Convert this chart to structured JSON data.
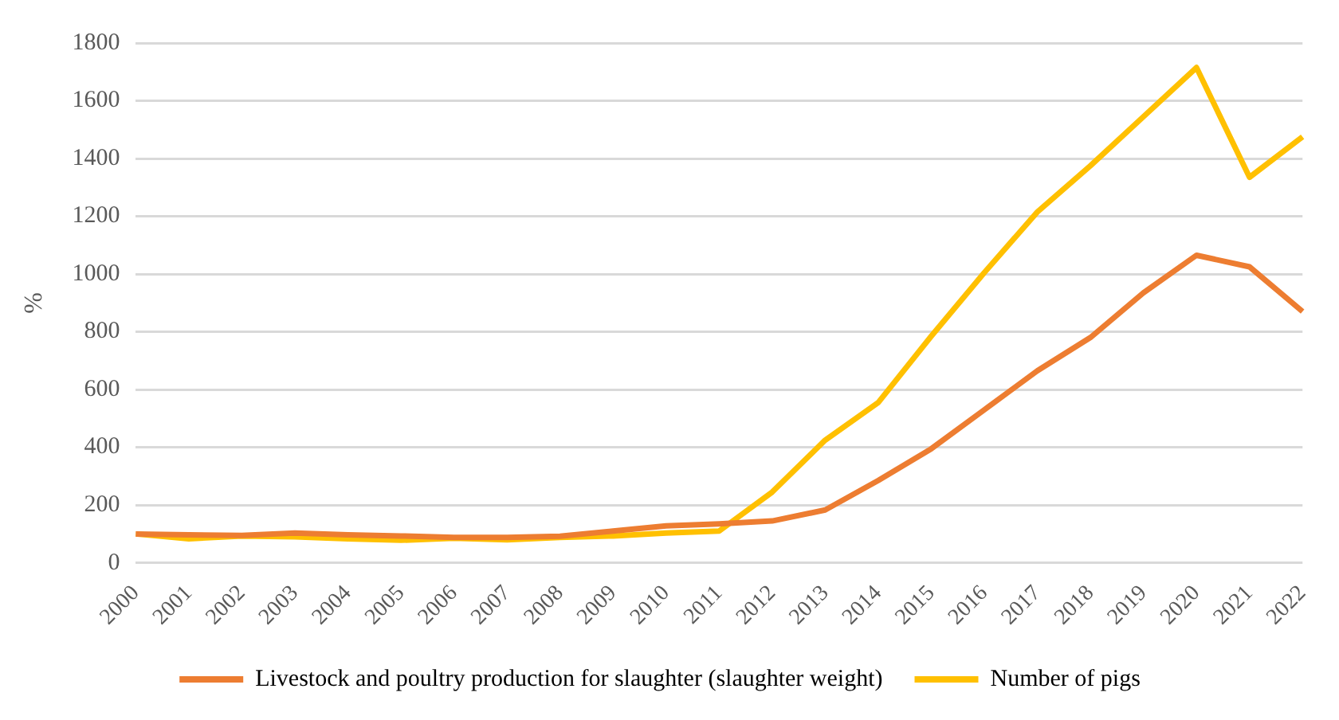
{
  "chart_data": {
    "type": "line",
    "ylabel": "%",
    "categories": [
      "2000",
      "2001",
      "2002",
      "2003",
      "2004",
      "2005",
      "2006",
      "2007",
      "2008",
      "2009",
      "2010",
      "2011",
      "2012",
      "2013",
      "2014",
      "2015",
      "2016",
      "2017",
      "2018",
      "2019",
      "2020",
      "2021",
      "2022"
    ],
    "series": [
      {
        "name": "Livestock and poultry production for slaughter (slaughter weight)",
        "color": "#ed7d31",
        "values": [
          100,
          97,
          95,
          103,
          97,
          93,
          88,
          88,
          92,
          110,
          128,
          135,
          145,
          183,
          285,
          395,
          530,
          665,
          780,
          935,
          1065,
          1025,
          870
        ]
      },
      {
        "name": "Number of pigs",
        "color": "#ffc000",
        "values": [
          100,
          83,
          93,
          90,
          83,
          78,
          85,
          80,
          88,
          93,
          103,
          110,
          245,
          425,
          555,
          785,
          1005,
          1215,
          1375,
          1545,
          1715,
          1335,
          1475
        ]
      }
    ],
    "ylim": [
      0,
      1800
    ],
    "yticks": [
      0,
      200,
      400,
      600,
      800,
      1000,
      1200,
      1400,
      1600,
      1800
    ],
    "grid": "y",
    "legend": "bottom",
    "marker": "none",
    "line_style": "solid"
  }
}
